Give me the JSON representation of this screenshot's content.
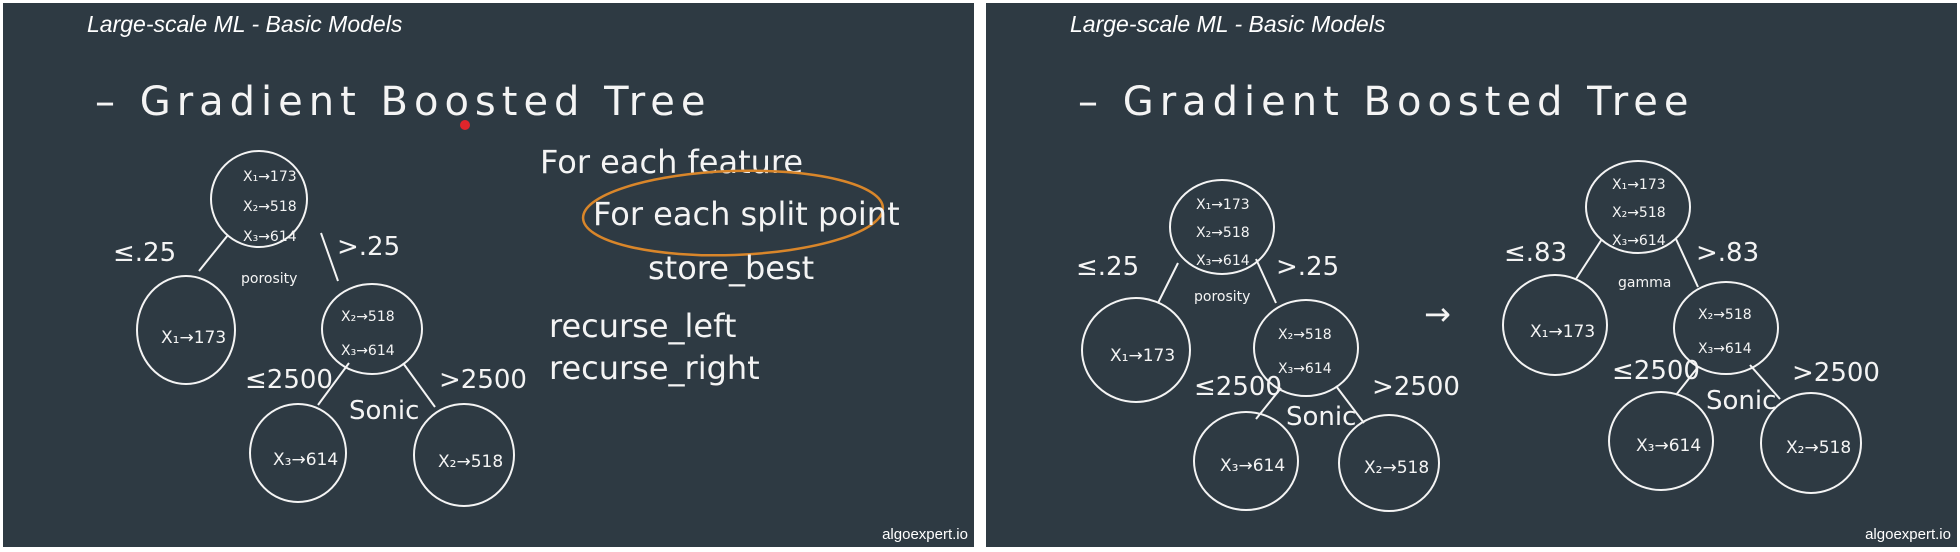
{
  "slides": [
    {
      "title": "Large-scale ML - Basic Models",
      "watermark": "algoexpert.io",
      "heading": "– Gradient Boosted Tree",
      "root": {
        "lines": [
          "X₁→173",
          "X₂→518",
          "X₃→614"
        ],
        "feature": "porosity"
      },
      "root_left_label": "≤.25",
      "root_right_label": ">.25",
      "left_leaf": "X₁→173",
      "right_node": {
        "lines": [
          "X₂→518",
          "X₃→614"
        ],
        "feature": "Sonic"
      },
      "right_left_label": "≤2500",
      "right_right_label": ">2500",
      "leaf_a": "X₃→614",
      "leaf_b": "X₂→518",
      "pseudocode": [
        "For each feature",
        "For each split point",
        "store_best",
        "recurse_left",
        "recurse_right"
      ]
    },
    {
      "title": "Large-scale ML - Basic Models",
      "watermark": "algoexpert.io",
      "heading": "– Gradient Boosted Tree",
      "arrow": "→",
      "tree1": {
        "root": {
          "lines": [
            "X₁→173",
            "X₂→518",
            "X₃→614"
          ],
          "feature": "porosity"
        },
        "root_left_label": "≤.25",
        "root_right_label": ">.25",
        "left_leaf": "X₁→173",
        "right_node": {
          "lines": [
            "X₂→518",
            "X₃→614"
          ],
          "feature": "Sonic"
        },
        "right_left_label": "≤2500",
        "right_right_label": ">2500",
        "leaf_a": "X₃→614",
        "leaf_b": "X₂→518"
      },
      "tree2": {
        "root": {
          "lines": [
            "X₁→173",
            "X₂→518",
            "X₃→614"
          ],
          "feature": "gamma"
        },
        "root_left_label": "≤.83",
        "root_right_label": ">.83",
        "left_leaf": "X₁→173",
        "right_node": {
          "lines": [
            "X₂→518",
            "X₃→614"
          ],
          "feature": "Sonic"
        },
        "right_left_label": "≤2500",
        "right_right_label": ">2500",
        "leaf_a": "X₃→614",
        "leaf_b": "X₂→518"
      }
    }
  ],
  "colors": {
    "background": "#2e3a43",
    "chalk": "#f4f4f4",
    "highlight": "#d9862a",
    "pointer": "#e0252b"
  }
}
